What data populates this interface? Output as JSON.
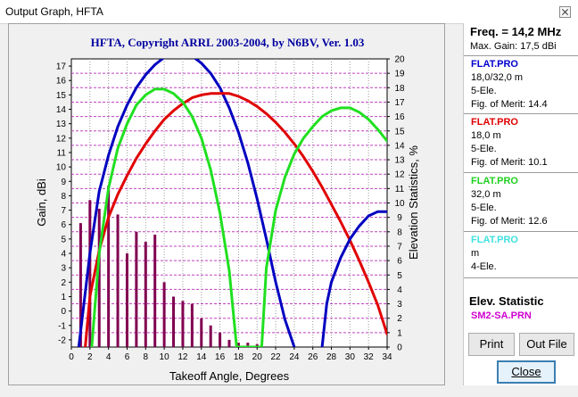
{
  "window": {
    "title": "Output Graph, HFTA"
  },
  "chart_data": {
    "type": "line",
    "title": "HFTA, Copyright ARRL 2003-2004, by N6BV, Ver. 1.03",
    "xlabel": "Takeoff Angle, Degrees",
    "ylabel": "Gain, dBi",
    "y2label": "Elevation Statistics, %",
    "xlim": [
      0,
      34
    ],
    "ylim": [
      -2.5,
      17.5
    ],
    "y2lim": [
      0,
      20
    ],
    "xticks": [
      0,
      2,
      4,
      6,
      8,
      10,
      12,
      14,
      16,
      18,
      20,
      22,
      24,
      26,
      28,
      30,
      32,
      34
    ],
    "yticks": [
      -2,
      -1,
      0,
      1,
      2,
      3,
      4,
      5,
      6,
      7,
      8,
      9,
      10,
      11,
      12,
      13,
      14,
      15,
      16,
      17
    ],
    "y2ticks": [
      0,
      1,
      2,
      3,
      4,
      5,
      6,
      7,
      8,
      9,
      10,
      11,
      12,
      13,
      14,
      15,
      16,
      17,
      18,
      19,
      20
    ],
    "grid": true,
    "series": [
      {
        "name": "FLAT.PRO",
        "color": "#0000c0",
        "points": [
          [
            0.8,
            -2.5
          ],
          [
            2,
            4
          ],
          [
            3,
            8.3
          ],
          [
            4,
            10.8
          ],
          [
            5,
            12.8
          ],
          [
            6,
            14.3
          ],
          [
            7,
            15.5
          ],
          [
            8,
            16.4
          ],
          [
            9,
            17.1
          ],
          [
            10,
            17.6
          ],
          [
            11,
            17.9
          ],
          [
            12,
            17.9
          ],
          [
            13,
            17.7
          ],
          [
            14,
            17.2
          ],
          [
            15,
            16.5
          ],
          [
            16,
            15.5
          ],
          [
            17,
            14.1
          ],
          [
            18,
            12.4
          ],
          [
            19,
            10.3
          ],
          [
            20,
            7.8
          ],
          [
            21,
            5
          ],
          [
            22,
            2
          ],
          [
            23,
            -0.6
          ],
          [
            24,
            -2.5
          ]
        ]
      },
      {
        "name": "FLAT.PRO",
        "color": "#e00000",
        "points": [
          [
            1.5,
            -2.5
          ],
          [
            2,
            1
          ],
          [
            3,
            4.2
          ],
          [
            4,
            6.5
          ],
          [
            5,
            8.1
          ],
          [
            6,
            9.4
          ],
          [
            7,
            10.6
          ],
          [
            8,
            11.6
          ],
          [
            9,
            12.5
          ],
          [
            10,
            13.3
          ],
          [
            11,
            13.9
          ],
          [
            12,
            14.4
          ],
          [
            13,
            14.8
          ],
          [
            14,
            15
          ],
          [
            15,
            15.1
          ],
          [
            16,
            15.1
          ],
          [
            17,
            15.1
          ],
          [
            18,
            14.9
          ],
          [
            19,
            14.6
          ],
          [
            20,
            14.2
          ],
          [
            21,
            13.7
          ],
          [
            22,
            13.1
          ],
          [
            23,
            12.4
          ],
          [
            24,
            11.6
          ],
          [
            25,
            10.7
          ],
          [
            26,
            9.7
          ],
          [
            27,
            8.6
          ],
          [
            28,
            7.4
          ],
          [
            29,
            6.2
          ],
          [
            30,
            4.9
          ],
          [
            31,
            3.5
          ],
          [
            32,
            2
          ],
          [
            33,
            0.4
          ],
          [
            34,
            -1.6
          ]
        ]
      },
      {
        "name": "FLAT.PRO",
        "color": "#20e020",
        "points": [
          [
            2.2,
            -2.5
          ],
          [
            3,
            4
          ],
          [
            4,
            8.5
          ],
          [
            5,
            11.3
          ],
          [
            6,
            13
          ],
          [
            7,
            14.3
          ],
          [
            8,
            15
          ],
          [
            9,
            15.4
          ],
          [
            10,
            15.4
          ],
          [
            11,
            15.1
          ],
          [
            12,
            14.5
          ],
          [
            13,
            13.5
          ],
          [
            14,
            12
          ],
          [
            15,
            9.8
          ],
          [
            16,
            6.8
          ],
          [
            17,
            2.8
          ],
          [
            17.8,
            -2.5
          ],
          [
            20.5,
            -2.5
          ],
          [
            21,
            3
          ],
          [
            22,
            7
          ],
          [
            23,
            9.3
          ],
          [
            24,
            10.9
          ],
          [
            25,
            12
          ],
          [
            26,
            12.8
          ],
          [
            27,
            13.5
          ],
          [
            28,
            13.9
          ],
          [
            29,
            14.1
          ],
          [
            30,
            14.1
          ],
          [
            31,
            13.8
          ],
          [
            32,
            13.3
          ],
          [
            33,
            12.6
          ],
          [
            34,
            11.8
          ]
        ]
      },
      {
        "name": "FLAT.PRO",
        "color": "#0000c0",
        "points": [
          [
            27,
            -2.5
          ],
          [
            27.5,
            0.5
          ],
          [
            28,
            2
          ],
          [
            29,
            3.7
          ],
          [
            30,
            5
          ],
          [
            31,
            5.9
          ],
          [
            32,
            6.6
          ],
          [
            33,
            6.9
          ],
          [
            34,
            6.9
          ]
        ]
      }
    ],
    "bars": {
      "name": "SM2-SA.PRN",
      "color": "#800050",
      "x": [
        1,
        2,
        3,
        4,
        5,
        6,
        7,
        8,
        9,
        10,
        11,
        12,
        13,
        14,
        15,
        16,
        17,
        18,
        19,
        20
      ],
      "values": [
        8.6,
        10.2,
        9.6,
        11.2,
        9.2,
        6.5,
        8,
        7.3,
        7.8,
        4.5,
        3.5,
        3.2,
        3,
        2,
        1.5,
        1,
        0.5,
        0.3,
        0.3,
        0.2
      ]
    }
  },
  "panel": {
    "freq": "Freq. = 14,2 MHz",
    "max_gain": "Max. Gain: 17,5 dBi",
    "files": [
      {
        "name": "FLAT.PRO",
        "color": "#0000d0",
        "lines": [
          "18,0/32,0 m",
          "5-Ele.",
          "Fig. of Merit:  14.4"
        ]
      },
      {
        "name": "FLAT.PRO",
        "color": "#e00000",
        "lines": [
          "18,0 m",
          "5-Ele.",
          "Fig. of Merit:  10.1"
        ]
      },
      {
        "name": "FLAT.PRO",
        "color": "#20d020",
        "lines": [
          "32,0 m",
          "5-Ele.",
          "Fig. of Merit:  12.6"
        ]
      },
      {
        "name": "FLAT.PRO",
        "color": "#40e0e0",
        "lines": [
          " m",
          "4-Ele."
        ]
      }
    ],
    "elev_title": "Elev. Statistic",
    "elev_file": "SM2-SA.PRN"
  },
  "buttons": {
    "print": "Print",
    "outfile": "Out File",
    "close": "Close"
  }
}
